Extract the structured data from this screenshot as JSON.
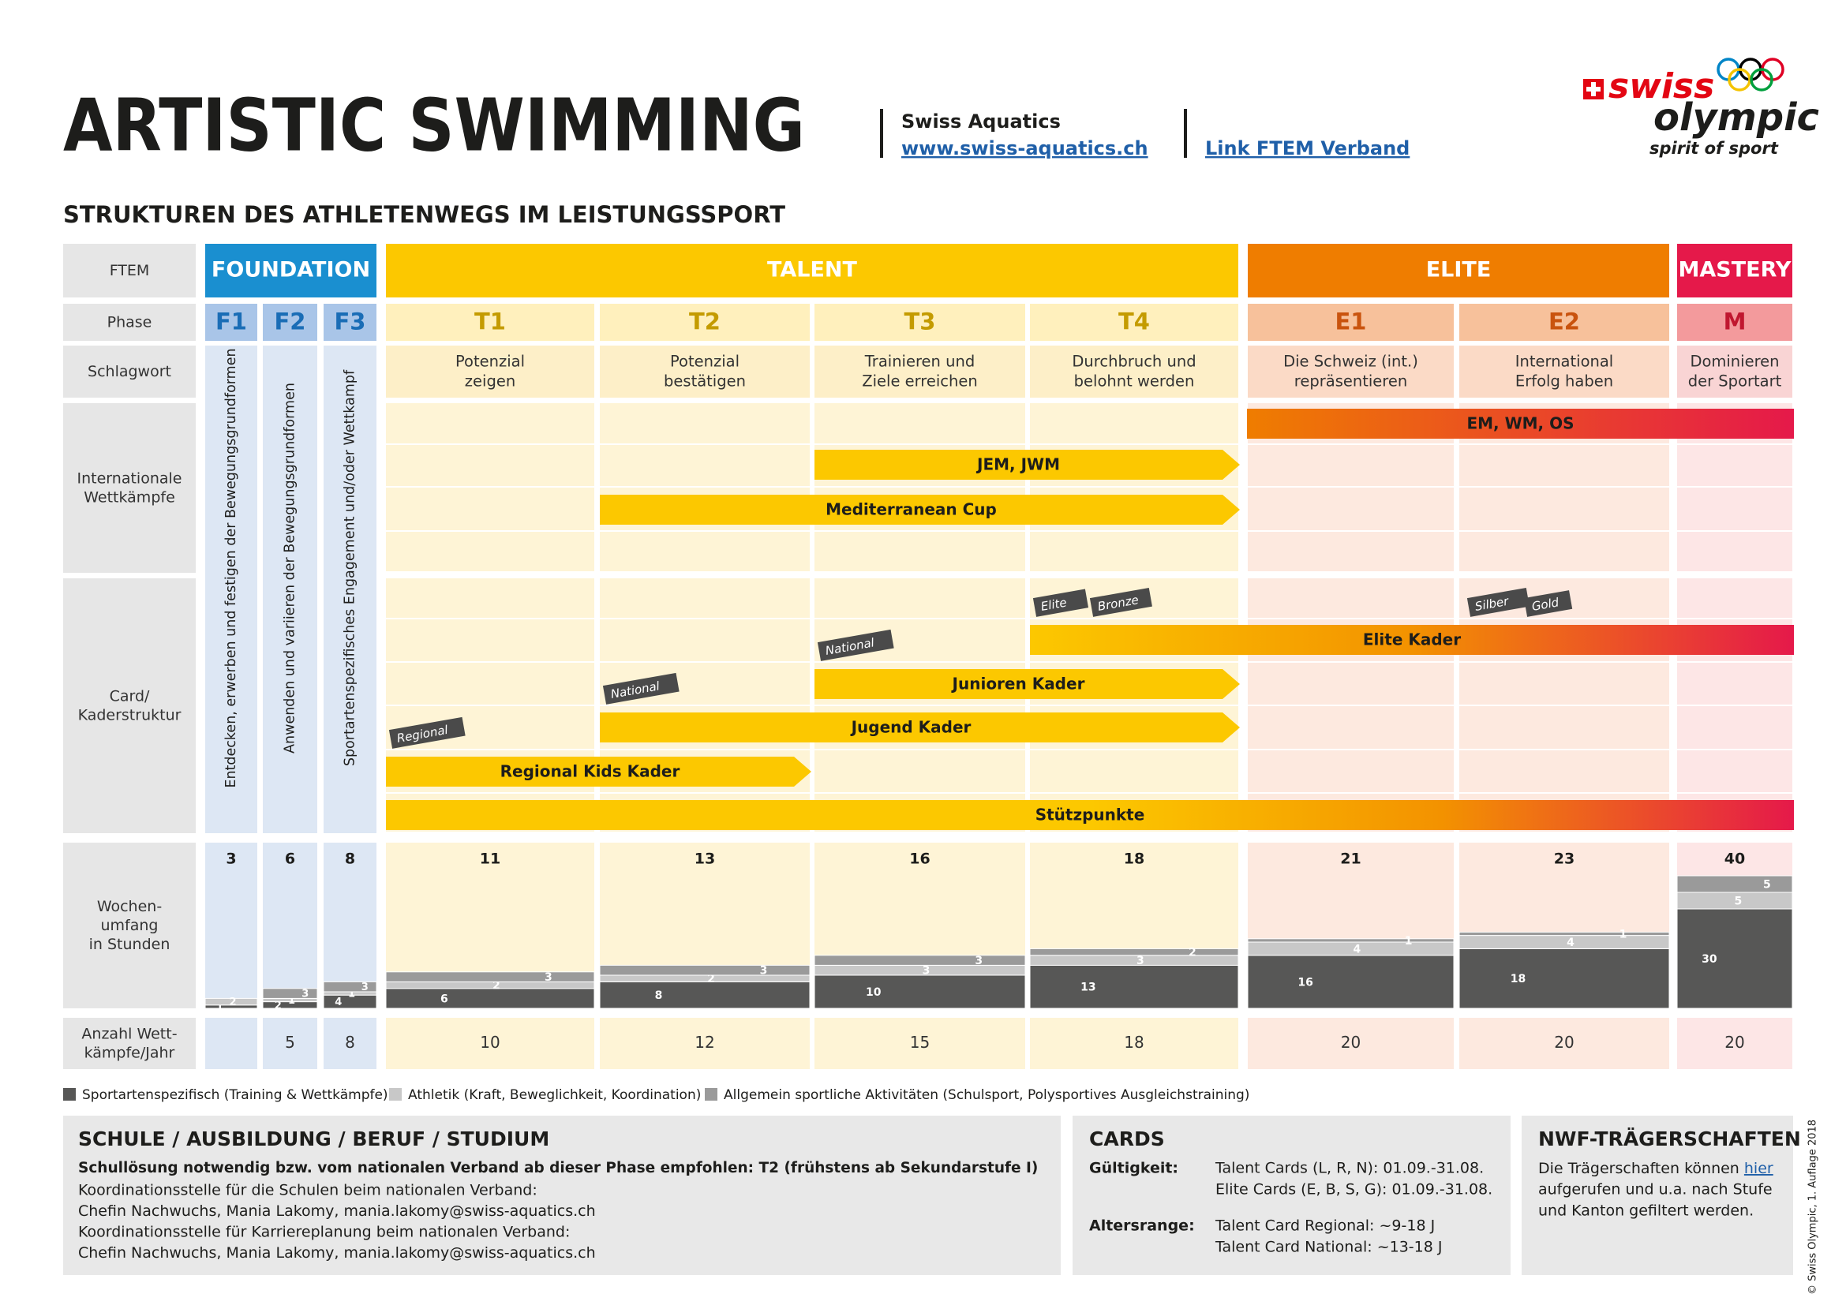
{
  "header": {
    "title": "ARTISTIC SWIMMING",
    "organization": "Swiss Aquatics",
    "website": "www.swiss-aquatics.ch",
    "ftem_link": "Link FTEM Verband",
    "logo": {
      "word1": "swiss",
      "word2": "olympic",
      "slogan": "spirit of sport"
    }
  },
  "subtitle": "STRUKTUREN DES ATHLETENWEGS IM LEISTUNGSSPORT",
  "row_labels": {
    "ftem": [
      "FTEM"
    ],
    "phase": [
      "Phase"
    ],
    "keyword": [
      "Schlagwort"
    ],
    "international": [
      "Internationale",
      "Wettkämpfe"
    ],
    "cards": [
      "Card/",
      "Kaderstruktur"
    ],
    "hours": [
      "Wochen-",
      "umfang",
      "in Stunden"
    ],
    "competitions": [
      "Anzahl Wett-",
      "kämpfe/Jahr"
    ]
  },
  "stages": [
    {
      "name": "FOUNDATION",
      "color": "#1a8fd0",
      "phases": [
        "F1",
        "F2",
        "F3"
      ]
    },
    {
      "name": "TALENT",
      "color": "#fcc800",
      "phases": [
        "T1",
        "T2",
        "T3",
        "T4"
      ]
    },
    {
      "name": "ELITE",
      "color": "#ef7d00",
      "phases": [
        "E1",
        "E2"
      ]
    },
    {
      "name": "MASTERY",
      "color": "#e5194a",
      "phases": [
        "M"
      ]
    }
  ],
  "phases": [
    {
      "name": "F1",
      "keyword": [
        "Entdecken, erwerben und festigen der Bewegungsgrundformen"
      ],
      "hours_total": 3,
      "hours": [
        1,
        2,
        null
      ],
      "competitions": null
    },
    {
      "name": "F2",
      "keyword": [
        "Anwenden und variieren der Bewegungsgrundformen"
      ],
      "hours_total": 6,
      "hours": [
        2,
        1,
        3
      ],
      "competitions": 5
    },
    {
      "name": "F3",
      "keyword": [
        "Sportartenspezifisches Engagement und/oder Wettkampf"
      ],
      "hours_total": 8,
      "hours": [
        4,
        1,
        3
      ],
      "competitions": 8
    },
    {
      "name": "T1",
      "keyword": [
        "Potenzial",
        "zeigen"
      ],
      "hours_total": 11,
      "hours": [
        6,
        2,
        3
      ],
      "competitions": 10
    },
    {
      "name": "T2",
      "keyword": [
        "Potenzial",
        "bestätigen"
      ],
      "hours_total": 13,
      "hours": [
        8,
        2,
        3
      ],
      "competitions": 12
    },
    {
      "name": "T3",
      "keyword": [
        "Trainieren und",
        "Ziele erreichen"
      ],
      "hours_total": 16,
      "hours": [
        10,
        3,
        3
      ],
      "competitions": 15
    },
    {
      "name": "T4",
      "keyword": [
        "Durchbruch und",
        "belohnt werden"
      ],
      "hours_total": 18,
      "hours": [
        13,
        3,
        2
      ],
      "competitions": 18
    },
    {
      "name": "E1",
      "keyword": [
        "Die Schweiz (int.)",
        "repräsentieren"
      ],
      "hours_total": 21,
      "hours": [
        16,
        4,
        1
      ],
      "competitions": 20
    },
    {
      "name": "E2",
      "keyword": [
        "International",
        "Erfolg haben"
      ],
      "hours_total": 23,
      "hours": [
        18,
        4,
        1
      ],
      "competitions": 20
    },
    {
      "name": "M",
      "keyword": [
        "Dominieren",
        "der Sportart"
      ],
      "hours_total": 40,
      "hours": [
        30,
        5,
        5
      ],
      "competitions": 20
    }
  ],
  "international_bars": [
    {
      "label": "EM, WM, OS",
      "from": "E1",
      "to": "M",
      "arrow": false,
      "colors": [
        "#ef7d00",
        "#e5194a"
      ]
    },
    {
      "label": "JEM, JWM",
      "from": "T3",
      "to": "T4",
      "arrow": true,
      "colors": [
        "#fcc800"
      ]
    },
    {
      "label": "Mediterranean Cup",
      "from": "T2",
      "to": "T4",
      "arrow": true,
      "colors": [
        "#fcc800"
      ]
    }
  ],
  "card_bars": [
    {
      "label": "Elite Kader",
      "from": "T4",
      "to": "M",
      "arrow": false,
      "colors": [
        "#fcc800",
        "#f39200",
        "#e5194a"
      ],
      "tags": [
        {
          "label": "Elite",
          "phase": "T4"
        },
        {
          "label": "Bronze",
          "phase": "T4"
        },
        {
          "label": "Silber",
          "phase": "E2"
        },
        {
          "label": "Gold",
          "phase": "E2"
        }
      ]
    },
    {
      "label": "Junioren Kader",
      "from": "T3",
      "to": "T4",
      "arrow": true,
      "colors": [
        "#fcc800"
      ],
      "tags": [
        {
          "label": "National",
          "phase": "T3"
        }
      ]
    },
    {
      "label": "Jugend Kader",
      "from": "T2",
      "to": "T4",
      "arrow": true,
      "colors": [
        "#fcc800"
      ],
      "tags": [
        {
          "label": "National",
          "phase": "T2"
        }
      ]
    },
    {
      "label": "Regional Kids Kader",
      "from": "T1",
      "to": "T2",
      "arrow": true,
      "colors": [
        "#fcc800"
      ],
      "tags": [
        {
          "label": "Regional",
          "phase": "T1"
        }
      ]
    },
    {
      "label": "Stützpunkte",
      "from": "T1",
      "to": "M",
      "arrow": false,
      "colors": [
        "#fcc800",
        "#fcc800",
        "#fcc800",
        "#f39200",
        "#e5194a"
      ],
      "tags": []
    }
  ],
  "legend": [
    {
      "label": "Sportartenspezifisch (Training & Wettkämpfe)",
      "color": "#575756"
    },
    {
      "label": "Athletik (Kraft, Beweglichkeit, Koordination)",
      "color": "#c8c8c8"
    },
    {
      "label": "Allgemein sportliche Aktivitäten (Schulsport, Polysportives  Ausgleichstraining)",
      "color": "#9a9a9a"
    }
  ],
  "school": {
    "title": "SCHULE / AUSBILDUNG / BERUF / STUDIUM",
    "highlight": "Schullösung notwendig bzw. vom nationalen Verband ab dieser Phase empfohlen: T2 (frühstens ab Sekundarstufe I)",
    "lines": [
      "Koordinationsstelle für die Schulen beim nationalen Verband:",
      "Chefin Nachwuchs, Mania Lakomy, mania.lakomy@swiss-aquatics.ch",
      "Koordinationsstelle für Karriereplanung beim nationalen Verband:",
      "Chefin Nachwuchs, Mania Lakomy, mania.lakomy@swiss-aquatics.ch"
    ]
  },
  "cards": {
    "title": "CARDS",
    "rows": [
      {
        "label": "Gültigkeit:",
        "values": [
          "Talent Cards (L, R, N): 01.09.-31.08.",
          "Elite Cards (E, B, S, G): 01.09.-31.08."
        ]
      },
      {
        "label": "Altersrange:",
        "values": [
          "Talent Card Regional: ~9-18 J",
          "Talent Card National: ~13-18 J"
        ]
      }
    ]
  },
  "nwf": {
    "title": "NWF-TRÄGERSCHAFTEN",
    "text_before": "Die Trägerschaften können ",
    "link": "hier",
    "text_after": [
      "aufgerufen und u.a. nach Stufe",
      "und Kanton gefiltert werden."
    ]
  },
  "copyright": "© Swiss Olympic, 1. Auflage 2018"
}
